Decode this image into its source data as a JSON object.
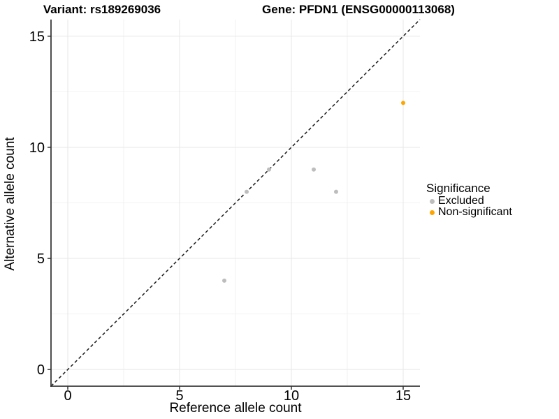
{
  "titles": {
    "variant": "Variant: rs189269036",
    "gene": "Gene: PFDN1 (ENSG00000113068)"
  },
  "chart_data": {
    "type": "scatter",
    "title_left": "Variant: rs189269036",
    "title_right": "Gene: PFDN1 (ENSG00000113068)",
    "xlabel": "Reference allele count",
    "ylabel": "Alternative allele count",
    "xlim": [
      -0.75,
      15.75
    ],
    "ylim": [
      -0.75,
      15.75
    ],
    "xticks": [
      0,
      5,
      10,
      15
    ],
    "yticks": [
      0,
      5,
      10,
      15
    ],
    "minor_gridlines": [
      2.5,
      7.5,
      12.5
    ],
    "grid": true,
    "identity_line": {
      "equation": "y = x",
      "style": "dashed",
      "color": "#1a1a1a"
    },
    "legend": {
      "title": "Significance",
      "position": "right"
    },
    "series": [
      {
        "name": "Excluded",
        "color": "#bdbdbd",
        "points": [
          [
            7,
            4
          ],
          [
            8,
            8
          ],
          [
            9,
            9
          ],
          [
            11,
            9
          ],
          [
            12,
            8
          ]
        ]
      },
      {
        "name": "Non-significant",
        "color": "#ffa500",
        "points": [
          [
            15,
            12
          ]
        ]
      }
    ]
  },
  "colors": {
    "grid_major": "#e7e7e7",
    "grid_minor": "#f2f2f2",
    "axis_line": "#3a3a3a",
    "tick_mark": "#333333",
    "text": "#000000"
  }
}
